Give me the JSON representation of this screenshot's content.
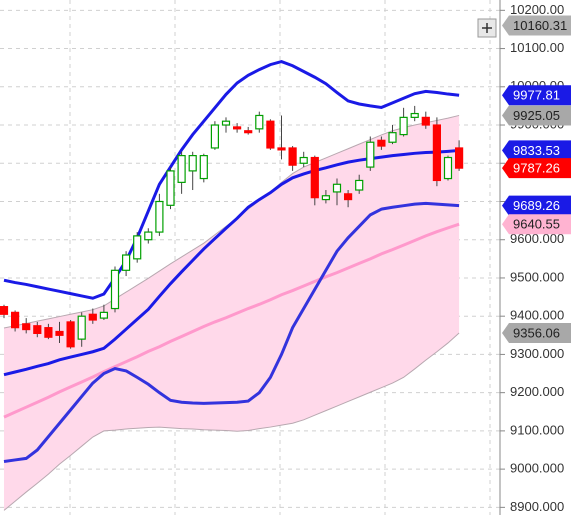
{
  "chart_data": {
    "type": "candlestick",
    "ylim": [
      8880,
      10227
    ],
    "yticks": [
      {
        "value": 10200,
        "label": "10200.00"
      },
      {
        "value": 10100,
        "label": "10100.00"
      },
      {
        "value": 10000,
        "label": "10000.00"
      },
      {
        "value": 9900,
        "label": "9900.000"
      },
      {
        "value": 9800,
        "label": "9800.000"
      },
      {
        "value": 9700,
        "label": "9700.000"
      },
      {
        "value": 9600,
        "label": "9600.000"
      },
      {
        "value": 9500,
        "label": "9500.000"
      },
      {
        "value": 9400,
        "label": "9400.000"
      },
      {
        "value": 9300,
        "label": "9300.000"
      },
      {
        "value": 9200,
        "label": "9200.000"
      },
      {
        "value": 9100,
        "label": "9100.000"
      },
      {
        "value": 9000,
        "label": "9000.000"
      },
      {
        "value": 8900,
        "label": "8900.000"
      }
    ],
    "grid": true,
    "up_color": "#00a000",
    "down_color": "#ff0000",
    "open": [
      9425,
      9410,
      9380,
      9375,
      9370,
      9360,
      9385,
      9340,
      9405,
      9395,
      9420,
      9520,
      9550,
      9600,
      9620,
      9690,
      9750,
      9780,
      9760,
      9840,
      9900,
      9895,
      9885,
      9890,
      9910,
      9840,
      9840,
      9800,
      9815,
      9705,
      9725,
      9720,
      9730,
      9790,
      9860,
      9855,
      9875,
      9920,
      9920,
      9900,
      9760,
      9840
    ],
    "high": [
      9430,
      9415,
      9395,
      9385,
      9380,
      9385,
      9390,
      9410,
      9420,
      9430,
      9530,
      9570,
      9620,
      9630,
      9720,
      9790,
      9830,
      9830,
      9825,
      9910,
      9920,
      9905,
      9895,
      9935,
      9915,
      9925,
      9845,
      9830,
      9820,
      9730,
      9760,
      9730,
      9770,
      9870,
      9870,
      9900,
      9945,
      9950,
      9935,
      9920,
      9820,
      9860
    ],
    "low": [
      9395,
      9360,
      9355,
      9345,
      9340,
      9330,
      9315,
      9320,
      9380,
      9390,
      9410,
      9505,
      9540,
      9590,
      9610,
      9680,
      9720,
      9730,
      9750,
      9835,
      9880,
      9880,
      9875,
      9880,
      9835,
      9810,
      9780,
      9790,
      9690,
      9695,
      9690,
      9685,
      9720,
      9780,
      9835,
      9850,
      9870,
      9910,
      9890,
      9740,
      9755,
      9780
    ],
    "close": [
      9405,
      9370,
      9365,
      9355,
      9345,
      9350,
      9320,
      9400,
      9390,
      9410,
      9520,
      9560,
      9610,
      9620,
      9700,
      9780,
      9820,
      9820,
      9820,
      9900,
      9910,
      9890,
      9880,
      9925,
      9840,
      9835,
      9795,
      9815,
      9710,
      9715,
      9745,
      9705,
      9755,
      9855,
      9845,
      9880,
      9920,
      9930,
      9900,
      9755,
      9815,
      9787.26
    ],
    "band": {
      "color": "#ffd9ea",
      "edge_color": "#b8a8b0",
      "upper": [
        9369,
        9375,
        9381,
        9387,
        9393,
        9399,
        9405,
        9411,
        9417,
        9427,
        9445,
        9463,
        9481,
        9499,
        9518,
        9537,
        9555,
        9573,
        9591,
        9613,
        9635,
        9657,
        9680,
        9702,
        9725,
        9750,
        9773,
        9790,
        9802,
        9814,
        9826,
        9838,
        9850,
        9862,
        9874,
        9885,
        9893,
        9900,
        9906,
        9912,
        9918,
        9925.05
      ],
      "lower": [
        8892,
        8916,
        8940,
        8963,
        8987,
        9013,
        9036,
        9060,
        9084,
        9100,
        9102,
        9105,
        9107,
        9109,
        9110,
        9108,
        9106,
        9105,
        9103,
        9102,
        9101,
        9099,
        9101,
        9106,
        9110,
        9115,
        9120,
        9129,
        9141,
        9153,
        9165,
        9177,
        9189,
        9201,
        9213,
        9225,
        9240,
        9262,
        9285,
        9307,
        9330,
        9356.06
      ]
    },
    "lines": [
      {
        "color": "#ff99cc",
        "values": [
          9136,
          9149,
          9162,
          9175,
          9188,
          9202,
          9215,
          9228,
          9241,
          9255,
          9268,
          9281,
          9294,
          9308,
          9320,
          9334,
          9347,
          9360,
          9373,
          9385,
          9396,
          9408,
          9420,
          9431,
          9443,
          9456,
          9467,
          9479,
          9491,
          9503,
          9514,
          9526,
          9538,
          9550,
          9563,
          9574,
          9586,
          9598,
          9610,
          9621,
          9631,
          9640.55
        ]
      },
      {
        "color": "#1a1ae6",
        "values": [
          9494,
          9488,
          9483,
          9477,
          9471,
          9465,
          9459,
          9453,
          9447,
          9458,
          9500,
          9545,
          9605,
          9675,
          9745,
          9790,
          9835,
          9875,
          9910,
          9945,
          9980,
          10010,
          10030,
          10045,
          10058,
          10066,
          10055,
          10040,
          10025,
          10008,
          9985,
          9963,
          9955,
          9950,
          9946,
          9958,
          9970,
          9982,
          9988,
          9985,
          9981,
          9977.81
        ]
      },
      {
        "color": "#1a1ae6",
        "values": [
          9247,
          9254,
          9261,
          9269,
          9276,
          9286,
          9293,
          9300,
          9307,
          9316,
          9340,
          9366,
          9392,
          9418,
          9452,
          9485,
          9516,
          9546,
          9576,
          9603,
          9630,
          9656,
          9685,
          9705,
          9723,
          9745,
          9762,
          9772,
          9781,
          9788,
          9796,
          9803,
          9808,
          9812,
          9816,
          9820,
          9823,
          9826,
          9828,
          9829,
          9831,
          9833.53
        ]
      },
      {
        "color": "#3333dd",
        "values": [
          9020,
          9024,
          9028,
          9050,
          9085,
          9120,
          9155,
          9190,
          9225,
          9250,
          9263,
          9257,
          9240,
          9222,
          9200,
          9180,
          9175,
          9173,
          9172,
          9173,
          9174,
          9175,
          9178,
          9200,
          9240,
          9300,
          9370,
          9420,
          9470,
          9520,
          9570,
          9605,
          9635,
          9665,
          9680,
          9685,
          9689,
          9693,
          9695,
          9693,
          9691,
          9689.26
        ]
      }
    ],
    "price_tags": [
      {
        "value": 10160.31,
        "label": "10160.31",
        "color": "#b0b0b0",
        "text_color": "#222222"
      },
      {
        "value": 9977.81,
        "label": "9977.81",
        "color": "#1a1ae6",
        "text_color": "#ffffff"
      },
      {
        "value": 9925.05,
        "label": "9925.05",
        "color": "#a8a8a8",
        "text_color": "#222222"
      },
      {
        "value": 9833.53,
        "label": "9833.53",
        "color": "#1a1ae6",
        "text_color": "#ffffff"
      },
      {
        "value": 9787.26,
        "label": "9787.26",
        "color": "#ff0000",
        "text_color": "#ffffff"
      },
      {
        "value": 9689.26,
        "label": "9689.26",
        "color": "#1a1ae6",
        "text_color": "#ffffff"
      },
      {
        "value": 9640.55,
        "label": "9640.55",
        "color": "#ffb3d1",
        "text_color": "#222222"
      },
      {
        "value": 9356.06,
        "label": "9356.06",
        "color": "#a8a8a8",
        "text_color": "#222222"
      }
    ]
  }
}
